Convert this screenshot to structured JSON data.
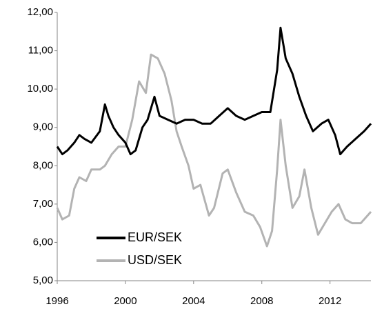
{
  "chart_data": {
    "type": "line",
    "xlim": [
      1996,
      2014.4
    ],
    "xticks": [
      1996,
      2000,
      2004,
      2008,
      2012
    ],
    "ylim": [
      5,
      12
    ],
    "yticks": [
      {
        "value": 5,
        "label": "5,00"
      },
      {
        "value": 6,
        "label": "6,00"
      },
      {
        "value": 7,
        "label": "7,00"
      },
      {
        "value": 8,
        "label": "8,00"
      },
      {
        "value": 9,
        "label": "9,00"
      },
      {
        "value": 10,
        "label": "10,00"
      },
      {
        "value": 11,
        "label": "11,00"
      },
      {
        "value": 12,
        "label": "12,00"
      }
    ],
    "grid": false,
    "legend": "lower left",
    "series": [
      {
        "name": "EUR/SEK",
        "color": "#000000",
        "x": [
          1996.0,
          1996.3,
          1996.6,
          1997.0,
          1997.3,
          1997.6,
          1998.0,
          1998.5,
          1998.8,
          1999.0,
          1999.3,
          1999.6,
          2000.0,
          2000.3,
          2000.6,
          2001.0,
          2001.3,
          2001.7,
          2002.0,
          2002.5,
          2003.0,
          2003.5,
          2004.0,
          2004.5,
          2005.0,
          2005.5,
          2006.0,
          2006.5,
          2007.0,
          2007.5,
          2008.0,
          2008.5,
          2008.9,
          2009.1,
          2009.4,
          2009.8,
          2010.2,
          2010.6,
          2011.0,
          2011.5,
          2011.9,
          2012.3,
          2012.6,
          2013.0,
          2013.5,
          2014.0,
          2014.4
        ],
        "values": [
          8.5,
          8.3,
          8.4,
          8.6,
          8.8,
          8.7,
          8.6,
          8.9,
          9.6,
          9.3,
          9.0,
          8.8,
          8.6,
          8.3,
          8.4,
          9.0,
          9.2,
          9.8,
          9.3,
          9.2,
          9.1,
          9.2,
          9.2,
          9.1,
          9.1,
          9.3,
          9.5,
          9.3,
          9.2,
          9.3,
          9.4,
          9.4,
          10.5,
          11.6,
          10.8,
          10.4,
          9.8,
          9.3,
          8.9,
          9.1,
          9.2,
          8.8,
          8.3,
          8.5,
          8.7,
          8.9,
          9.1
        ]
      },
      {
        "name": "USD/SEK",
        "color": "#b3b3b3",
        "x": [
          1996.0,
          1996.3,
          1996.7,
          1997.0,
          1997.3,
          1997.7,
          1998.0,
          1998.5,
          1998.8,
          1999.2,
          1999.6,
          2000.0,
          2000.4,
          2000.8,
          2001.2,
          2001.5,
          2001.9,
          2002.3,
          2002.7,
          2003.0,
          2003.3,
          2003.7,
          2004.0,
          2004.4,
          2004.9,
          2005.2,
          2005.7,
          2006.0,
          2006.5,
          2007.0,
          2007.5,
          2007.9,
          2008.3,
          2008.6,
          2008.9,
          2009.1,
          2009.4,
          2009.8,
          2010.2,
          2010.5,
          2010.9,
          2011.3,
          2011.7,
          2012.1,
          2012.5,
          2012.9,
          2013.3,
          2013.8,
          2014.4
        ],
        "values": [
          6.9,
          6.6,
          6.7,
          7.4,
          7.7,
          7.6,
          7.9,
          7.9,
          8.0,
          8.3,
          8.5,
          8.5,
          9.2,
          10.2,
          9.9,
          10.9,
          10.8,
          10.4,
          9.7,
          8.9,
          8.5,
          8.0,
          7.4,
          7.5,
          6.7,
          6.9,
          7.8,
          7.9,
          7.3,
          6.8,
          6.7,
          6.4,
          5.9,
          6.3,
          7.9,
          9.2,
          8.0,
          6.9,
          7.2,
          7.9,
          6.9,
          6.2,
          6.5,
          6.8,
          7.0,
          6.6,
          6.5,
          6.5,
          6.8
        ]
      }
    ]
  }
}
